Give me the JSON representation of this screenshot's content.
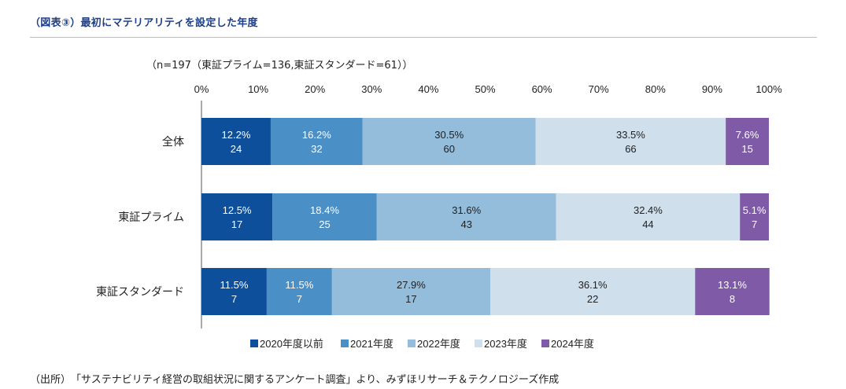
{
  "header": {
    "title": "（図表③）最初にマテリアリティを設定した年度"
  },
  "subtitle": "（n=197（東証プライム=136,東証スタンダード=61））",
  "source": "（出所）　「サステナビリティ経営の取組状況に関するアンケート調査」より、みずほリサーチ＆テクノロジーズ作成",
  "colors": {
    "s2020": "#0e4f9c",
    "s2021": "#4a8fc6",
    "s2022": "#94bcdb",
    "s2023": "#cfdfec",
    "s2024": "#7f5aa6",
    "axis": "#555555"
  },
  "chart_data": {
    "type": "bar",
    "orientation": "horizontal",
    "stacked": true,
    "title": "最初にマテリアリティを設定した年度",
    "categories": [
      "全体",
      "東証プライム",
      "東証スタンダード"
    ],
    "xlim": [
      0,
      100
    ],
    "x_ticks": [
      "0%",
      "10%",
      "20%",
      "30%",
      "40%",
      "50%",
      "60%",
      "70%",
      "80%",
      "90%",
      "100%"
    ],
    "legend_position": "bottom",
    "series": [
      {
        "name": "2020年度以前",
        "color_key": "s2020",
        "values": [
          12.2,
          12.5,
          11.5
        ],
        "labels": [
          "12.2%",
          "12.5%",
          "11.5%"
        ],
        "counts": [
          "24",
          "17",
          "7"
        ]
      },
      {
        "name": "2021年度",
        "color_key": "s2021",
        "values": [
          16.2,
          18.4,
          11.5
        ],
        "labels": [
          "16.2%",
          "18.4%",
          "11.5%"
        ],
        "counts": [
          "32",
          "25",
          "7"
        ]
      },
      {
        "name": "2022年度",
        "color_key": "s2022",
        "values": [
          30.5,
          31.6,
          27.9
        ],
        "labels": [
          "30.5%",
          "31.6%",
          "27.9%"
        ],
        "counts": [
          "60",
          "43",
          "17"
        ]
      },
      {
        "name": "2023年度",
        "color_key": "s2023",
        "values": [
          33.5,
          32.4,
          36.1
        ],
        "labels": [
          "33.5%",
          "32.4%",
          "36.1%"
        ],
        "counts": [
          "66",
          "44",
          "22"
        ]
      },
      {
        "name": "2024年度",
        "color_key": "s2024",
        "values": [
          7.6,
          5.1,
          13.1
        ],
        "labels": [
          "7.6%",
          "5.1%",
          "13.1%"
        ],
        "counts": [
          "15",
          "7",
          "8"
        ]
      }
    ]
  }
}
